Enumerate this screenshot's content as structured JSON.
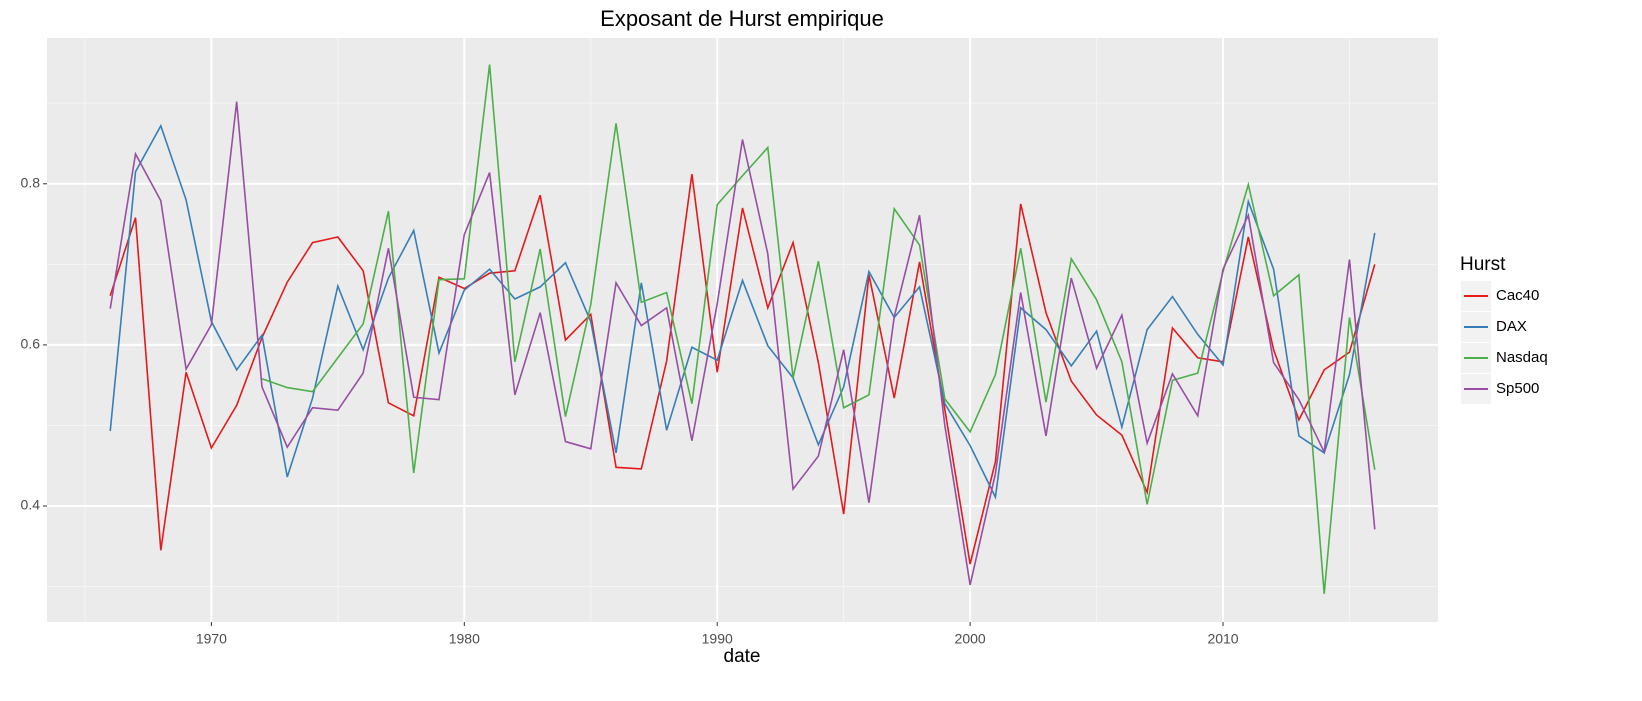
{
  "chart_data": {
    "type": "line",
    "title": "Exposant de Hurst empirique",
    "x_label": "date",
    "legend_title": "Hurst",
    "x": [
      1966,
      1967,
      1968,
      1969,
      1970,
      1971,
      1972,
      1973,
      1974,
      1975,
      1976,
      1977,
      1978,
      1979,
      1980,
      1981,
      1982,
      1983,
      1984,
      1985,
      1986,
      1987,
      1988,
      1989,
      1990,
      1991,
      1992,
      1993,
      1994,
      1995,
      1996,
      1997,
      1998,
      1999,
      2000,
      2001,
      2002,
      2003,
      2004,
      2005,
      2006,
      2007,
      2008,
      2009,
      2010,
      2011,
      2012,
      2013,
      2014,
      2015,
      2016
    ],
    "series": [
      {
        "name": "Cac40",
        "color": "#e41a1c",
        "values": [
          0.661,
          0.758,
          0.345,
          0.566,
          0.472,
          0.525,
          0.609,
          0.678,
          0.727,
          0.734,
          0.692,
          0.528,
          0.512,
          0.684,
          0.67,
          0.689,
          0.692,
          0.786,
          0.606,
          0.638,
          0.448,
          0.446,
          0.58,
          0.812,
          0.566,
          0.77,
          0.646,
          0.727,
          0.578,
          0.39,
          0.687,
          0.534,
          0.703,
          0.52,
          0.328,
          0.455,
          0.775,
          0.64,
          0.555,
          0.513,
          0.488,
          0.417,
          0.621,
          0.584,
          0.579,
          0.734,
          0.594,
          0.507,
          0.569,
          0.591,
          0.7
        ]
      },
      {
        "name": "DAX",
        "color": "#377eb8",
        "values": [
          0.493,
          0.815,
          0.872,
          0.78,
          0.629,
          0.569,
          0.612,
          0.436,
          0.534,
          0.673,
          0.594,
          0.683,
          0.742,
          0.59,
          0.668,
          0.694,
          0.657,
          0.672,
          0.702,
          0.629,
          0.466,
          0.677,
          0.494,
          0.597,
          0.581,
          0.68,
          0.599,
          0.559,
          0.476,
          0.548,
          0.691,
          0.634,
          0.672,
          0.527,
          0.475,
          0.411,
          0.646,
          0.619,
          0.574,
          0.617,
          0.498,
          0.619,
          0.66,
          0.613,
          0.575,
          0.778,
          0.694,
          0.487,
          0.466,
          0.563,
          0.739
        ]
      },
      {
        "name": "Nasdaq",
        "color": "#4daf4a",
        "values": [
          null,
          null,
          null,
          null,
          null,
          null,
          0.558,
          0.547,
          0.542,
          0.584,
          0.626,
          0.766,
          0.441,
          0.681,
          0.682,
          0.948,
          0.579,
          0.719,
          0.511,
          0.65,
          0.875,
          0.653,
          0.665,
          0.527,
          0.774,
          0.81,
          0.845,
          0.559,
          0.704,
          0.522,
          0.538,
          0.769,
          0.724,
          0.533,
          0.492,
          0.563,
          0.72,
          0.529,
          0.707,
          0.656,
          0.579,
          0.402,
          0.556,
          0.565,
          0.691,
          0.799,
          0.661,
          0.687,
          0.291,
          0.634,
          0.445
        ]
      },
      {
        "name": "Sp500",
        "color": "#984ea3",
        "values": [
          0.645,
          0.837,
          0.779,
          0.57,
          0.625,
          0.902,
          0.548,
          0.473,
          0.522,
          0.519,
          0.565,
          0.72,
          0.535,
          0.532,
          0.737,
          0.814,
          0.538,
          0.64,
          0.48,
          0.471,
          0.677,
          0.624,
          0.646,
          0.481,
          0.651,
          0.855,
          0.713,
          0.421,
          0.462,
          0.594,
          0.404,
          0.635,
          0.761,
          0.5,
          0.302,
          0.44,
          0.665,
          0.487,
          0.683,
          0.571,
          0.637,
          0.478,
          0.564,
          0.512,
          0.694,
          0.761,
          0.578,
          0.532,
          0.467,
          0.706,
          0.371
        ]
      }
    ],
    "xlim": [
      1963.5,
      2018.5
    ],
    "xticks": [
      1970,
      1980,
      1990,
      2000,
      2010
    ],
    "ylim": [
      0.256,
      0.981
    ],
    "yticks": [
      0.4,
      0.6,
      0.8
    ],
    "grid": true,
    "legend_position": "right"
  }
}
